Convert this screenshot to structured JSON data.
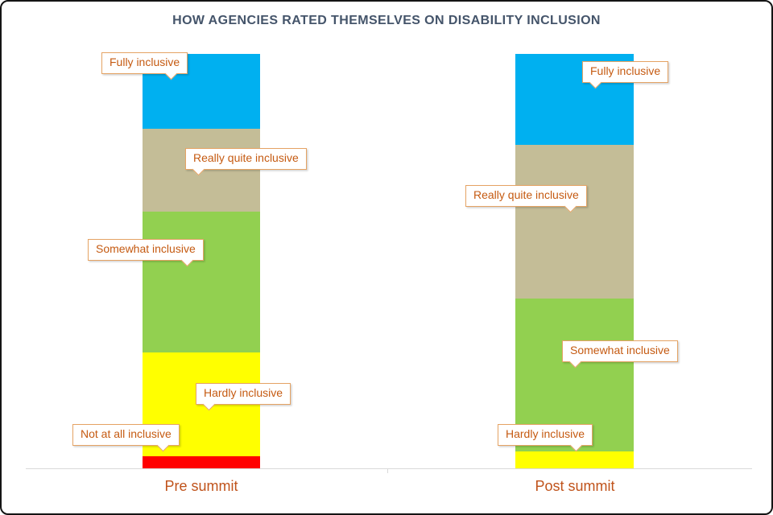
{
  "title": "HOW AGENCIES RATED THEMSELVES ON DISABILITY INCLUSION",
  "chart_data": {
    "type": "bar",
    "subtype": "100%-stacked-column",
    "title": "HOW AGENCIES RATED THEMSELVES ON DISABILITY INCLUSION",
    "categories": [
      "Pre summit",
      "Post summit"
    ],
    "series": [
      {
        "name": "Not at all inclusive",
        "color": "#FF0000",
        "values": [
          3,
          0
        ]
      },
      {
        "name": "Hardly inclusive",
        "color": "#FFFF00",
        "values": [
          25,
          4
        ]
      },
      {
        "name": "Somewhat inclusive",
        "color": "#92D050",
        "values": [
          34,
          37
        ]
      },
      {
        "name": "Really quite inclusive",
        "color": "#C4BD97",
        "values": [
          20,
          37
        ]
      },
      {
        "name": "Fully inclusive",
        "color": "#00B0F0",
        "values": [
          18,
          22
        ]
      }
    ],
    "ylim": [
      0,
      100
    ],
    "value_unit": "percent (estimated from segment heights)",
    "grid": false,
    "legend_position": "none (labels shown as callouts on segments)",
    "xlabel": "",
    "ylabel": ""
  },
  "callouts": {
    "pre": {
      "fully": "Fully inclusive",
      "really": "Really quite inclusive",
      "somewhat": "Somewhat inclusive",
      "hardly": "Hardly inclusive",
      "notatall": "Not at all inclusive"
    },
    "post": {
      "fully": "Fully inclusive",
      "really": "Really quite inclusive",
      "somewhat": "Somewhat inclusive",
      "hardly": "Hardly inclusive"
    }
  },
  "colors": {
    "title_text": "#44546A",
    "callout_text": "#C55A11",
    "callout_border": "#E5A364",
    "category_label_text": "#C0531B",
    "axis_line": "#D9D9D9"
  }
}
